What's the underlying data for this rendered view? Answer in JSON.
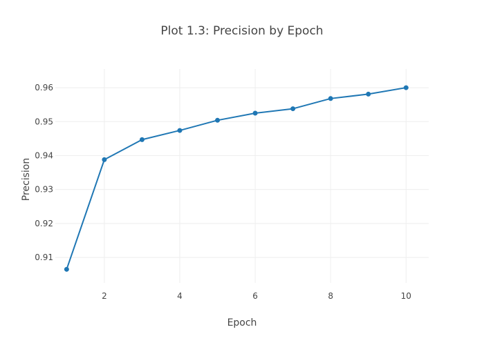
{
  "chart_data": {
    "type": "line",
    "title": "Plot 1.3: Precision by Epoch",
    "xlabel": "Epoch",
    "ylabel": "Precision",
    "xlim": [
      0.7,
      10.6
    ],
    "ylim": [
      0.9025,
      0.9655
    ],
    "xticks": [
      2,
      4,
      6,
      8,
      10
    ],
    "yticks": [
      0.91,
      0.92,
      0.93,
      0.94,
      0.95,
      0.96
    ],
    "grid": true,
    "legend": "none",
    "colors": {
      "line": "#1f77b4",
      "grid": "#eeeeee",
      "text": "#444444"
    },
    "series": [
      {
        "x": [
          1,
          2,
          3,
          4,
          5,
          6,
          7,
          8,
          9,
          10
        ],
        "values": [
          0.9065,
          0.9388,
          0.9447,
          0.9474,
          0.9504,
          0.9525,
          0.9538,
          0.9568,
          0.9581,
          0.96
        ]
      }
    ]
  }
}
